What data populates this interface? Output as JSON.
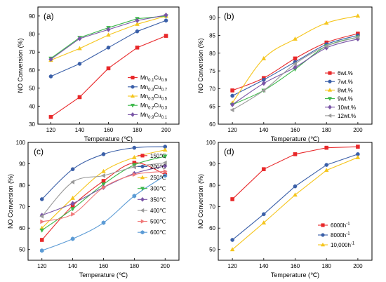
{
  "chart_data": [
    {
      "id": "a",
      "type": "line",
      "panel_label": "(a)",
      "xlabel": "Temperature (℃)",
      "ylabel": "NO Conversion (%)",
      "x": [
        120,
        140,
        160,
        180,
        200
      ],
      "xticks": [
        120,
        140,
        160,
        180,
        200
      ],
      "xlim": [
        111,
        209
      ],
      "ylim": [
        30,
        95
      ],
      "yticks": [
        30,
        40,
        50,
        60,
        70,
        80,
        90
      ],
      "legend_position": "bottom-right",
      "curve": "linear",
      "series": [
        {
          "name": "Mn0.1Cu0.9",
          "name_base": "Mn",
          "name_sub1": "0.1",
          "name_mid": "Cu",
          "name_sub2": "0.9",
          "color": "#e8282a",
          "marker": "square",
          "values": [
            34,
            45,
            61,
            72.5,
            79
          ]
        },
        {
          "name": "Mn0.3Cu0.7",
          "name_base": "Mn",
          "name_sub1": "0.3",
          "name_mid": "Cu",
          "name_sub2": "0.7",
          "color": "#3a5fa8",
          "marker": "circle",
          "values": [
            56.5,
            63.5,
            72.5,
            81.5,
            87.5
          ]
        },
        {
          "name": "Mn0.5Cu0.5",
          "name_base": "Mn",
          "name_sub1": "0.5",
          "name_mid": "Cu",
          "name_sub2": "0.5",
          "color": "#f5c51c",
          "marker": "triangle-up",
          "values": [
            65.5,
            72,
            79.5,
            85.5,
            90
          ]
        },
        {
          "name": "Mn0.7Cu0.3",
          "name_base": "Mn",
          "name_sub1": "0.7",
          "name_mid": "Cu",
          "name_sub2": "0.3",
          "color": "#3cb84a",
          "marker": "triangle-down",
          "values": [
            66.5,
            78,
            83.5,
            88.5,
            90
          ]
        },
        {
          "name": "Mn0.9Cu0.1",
          "name_base": "Mn",
          "name_sub1": "0.9",
          "name_mid": "Cu",
          "name_sub2": "0.1",
          "color": "#7a55a6",
          "marker": "diamond",
          "values": [
            66,
            77.5,
            82.5,
            87.5,
            90.5
          ]
        }
      ]
    },
    {
      "id": "b",
      "type": "line",
      "panel_label": "(b)",
      "xlabel": "Temperature (℃)",
      "ylabel": "NO Conversion (%)",
      "x": [
        120,
        140,
        160,
        180,
        200
      ],
      "xticks": [
        120,
        140,
        160,
        180,
        200
      ],
      "xlim": [
        111,
        209
      ],
      "ylim": [
        60,
        93
      ],
      "yticks": [
        60,
        65,
        70,
        75,
        80,
        85,
        90
      ],
      "legend_position": "bottom-right",
      "curve": "smooth",
      "series": [
        {
          "name": "6wt.%",
          "color": "#e8282a",
          "marker": "square",
          "values": [
            69.5,
            73,
            78.5,
            83,
            85.5
          ]
        },
        {
          "name": "7wt.%",
          "color": "#3a5fa8",
          "marker": "circle",
          "values": [
            68,
            72.5,
            77.5,
            82.5,
            85
          ]
        },
        {
          "name": "8wt.%",
          "color": "#f5c51c",
          "marker": "triangle-up",
          "values": [
            66,
            78.5,
            84,
            88.5,
            90.5
          ]
        },
        {
          "name": "9wt.%",
          "color": "#3cb84a",
          "marker": "triangle-down",
          "values": [
            65.5,
            69.5,
            75.5,
            82,
            84.5
          ]
        },
        {
          "name": "10wt.%",
          "color": "#7a55a6",
          "marker": "diamond",
          "values": [
            65.5,
            71.5,
            76,
            81.5,
            84
          ]
        },
        {
          "name": "12wt.%",
          "color": "#9a9a9a",
          "marker": "triangle-left",
          "values": [
            64,
            69.5,
            77,
            82,
            84.5
          ]
        }
      ]
    },
    {
      "id": "c",
      "type": "line",
      "panel_label": "(c)",
      "xlabel": "Temperature (℃)",
      "ylabel": "NO Conversion (%)",
      "x": [
        120,
        140,
        160,
        180,
        200
      ],
      "xticks": [
        120,
        140,
        160,
        180,
        200
      ],
      "xlim": [
        111,
        209
      ],
      "ylim": [
        45,
        100
      ],
      "yticks": [
        50,
        60,
        70,
        80,
        90,
        100
      ],
      "legend_position": "bottom-right",
      "curve": "smooth",
      "series": [
        {
          "name": "150℃",
          "color": "#e8282a",
          "marker": "square",
          "values": [
            54.5,
            70.5,
            82,
            90.5,
            85
          ]
        },
        {
          "name": "200℃",
          "color": "#3a5fa8",
          "marker": "circle",
          "values": [
            73.5,
            87.5,
            94.5,
            97.5,
            98
          ]
        },
        {
          "name": "250℃",
          "color": "#f5c51c",
          "marker": "triangle-up",
          "values": [
            60,
            74,
            86.5,
            93,
            96.5
          ]
        },
        {
          "name": "300℃",
          "color": "#3cb84a",
          "marker": "triangle-down",
          "values": [
            59,
            69,
            80.5,
            89.5,
            93.5
          ]
        },
        {
          "name": "350℃",
          "color": "#7a55a6",
          "marker": "diamond",
          "values": [
            66,
            71.5,
            79,
            85.5,
            89
          ]
        },
        {
          "name": "400℃",
          "color": "#9a9a9a",
          "marker": "triangle-left",
          "values": [
            65.5,
            81.5,
            84.5,
            88.5,
            90.5
          ]
        },
        {
          "name": "500℃",
          "color": "#f07878",
          "marker": "triangle-right",
          "values": [
            63,
            66.5,
            79,
            85,
            86.5
          ]
        },
        {
          "name": "600℃",
          "color": "#5b9bd5",
          "marker": "hexagon",
          "values": [
            49.5,
            55,
            62.5,
            75,
            84.5
          ]
        }
      ]
    },
    {
      "id": "d",
      "type": "line",
      "panel_label": "(d)",
      "xlabel": "Temperature (℃)",
      "ylabel": "NO Conversion (%)",
      "x": [
        120,
        140,
        160,
        180,
        200
      ],
      "xticks": [
        120,
        140,
        160,
        180,
        200
      ],
      "xlim": [
        111,
        209
      ],
      "ylim": [
        45,
        100
      ],
      "yticks": [
        50,
        60,
        70,
        80,
        90,
        100
      ],
      "legend_position": "bottom-right",
      "curve": "linear",
      "series": [
        {
          "name": "6000h-1",
          "name_base": "6000h",
          "name_sup": "-1",
          "color": "#e8282a",
          "marker": "square",
          "values": [
            73.5,
            87.5,
            94.5,
            97.5,
            98
          ]
        },
        {
          "name": "8000h-1",
          "name_base": "8000h",
          "name_sup": "-1",
          "color": "#3a5fa8",
          "marker": "circle",
          "values": [
            54.5,
            66.5,
            79.5,
            89.5,
            94.5
          ]
        },
        {
          "name": "10,000h-1",
          "name_base": "10,000h",
          "name_sup": "-1",
          "color": "#f5c51c",
          "marker": "triangle-up",
          "values": [
            50,
            62.5,
            75.5,
            87,
            93
          ]
        }
      ]
    }
  ]
}
